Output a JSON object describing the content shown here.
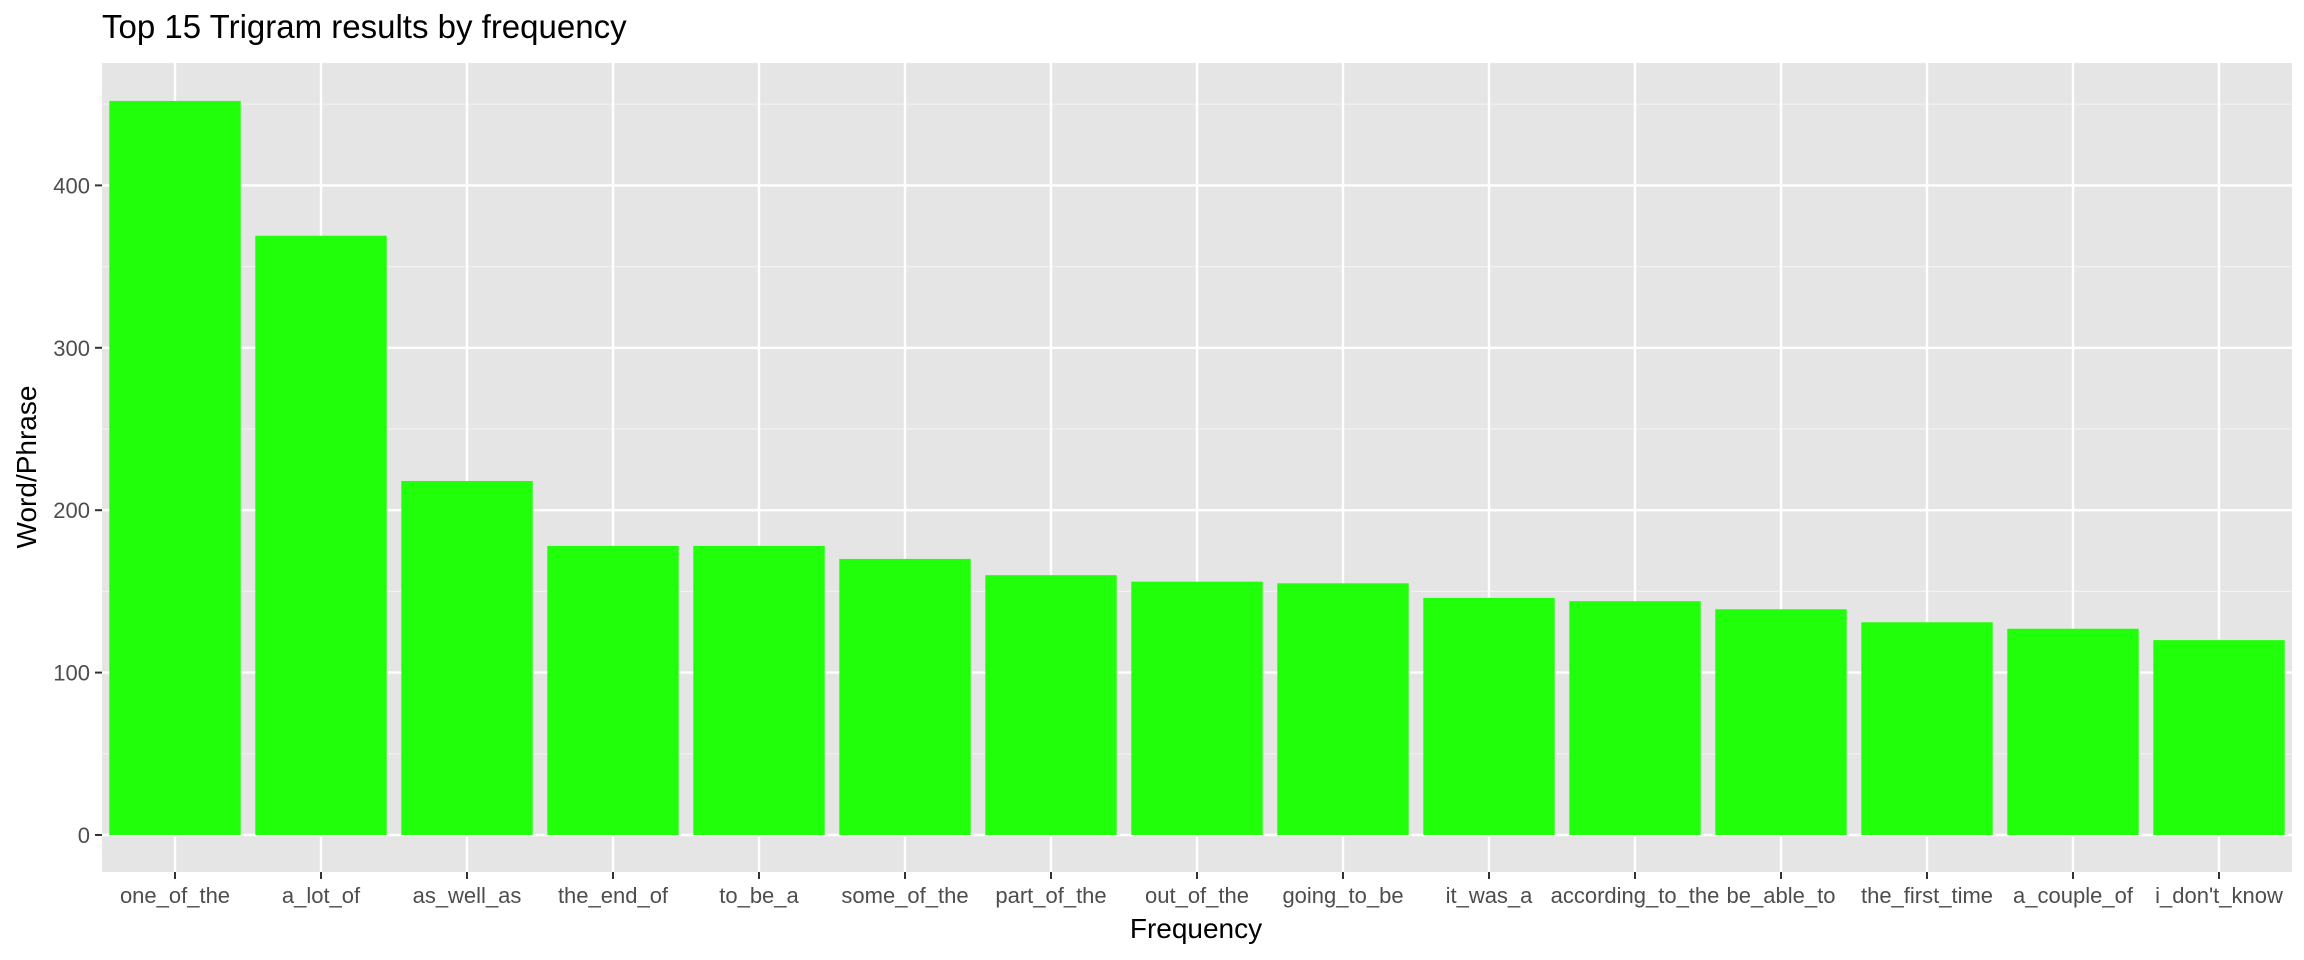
{
  "chart_data": {
    "type": "bar",
    "title": "Top 15 Trigram results by frequency",
    "xlabel": "Frequency",
    "ylabel": "Word/Phrase",
    "categories": [
      "one_of_the",
      "a_lot_of",
      "as_well_as",
      "the_end_of",
      "to_be_a",
      "some_of_the",
      "part_of_the",
      "out_of_the",
      "going_to_be",
      "it_was_a",
      "according_to_the",
      "be_able_to",
      "the_first_time",
      "a_couple_of",
      "i_don't_know"
    ],
    "values": [
      452,
      369,
      218,
      178,
      178,
      170,
      160,
      156,
      155,
      146,
      144,
      139,
      131,
      127,
      120
    ],
    "ylim": [
      0,
      475
    ],
    "yticks": [
      0,
      100,
      200,
      300,
      400
    ],
    "grid": true,
    "colors": {
      "bar": "#22ff0a",
      "panel": "#e5e5e5",
      "grid_major": "#ffffff",
      "grid_minor": "#f2f2f2",
      "text": "#000000",
      "tick_text": "#4d4d4d",
      "tick_mark": "#333333"
    }
  }
}
